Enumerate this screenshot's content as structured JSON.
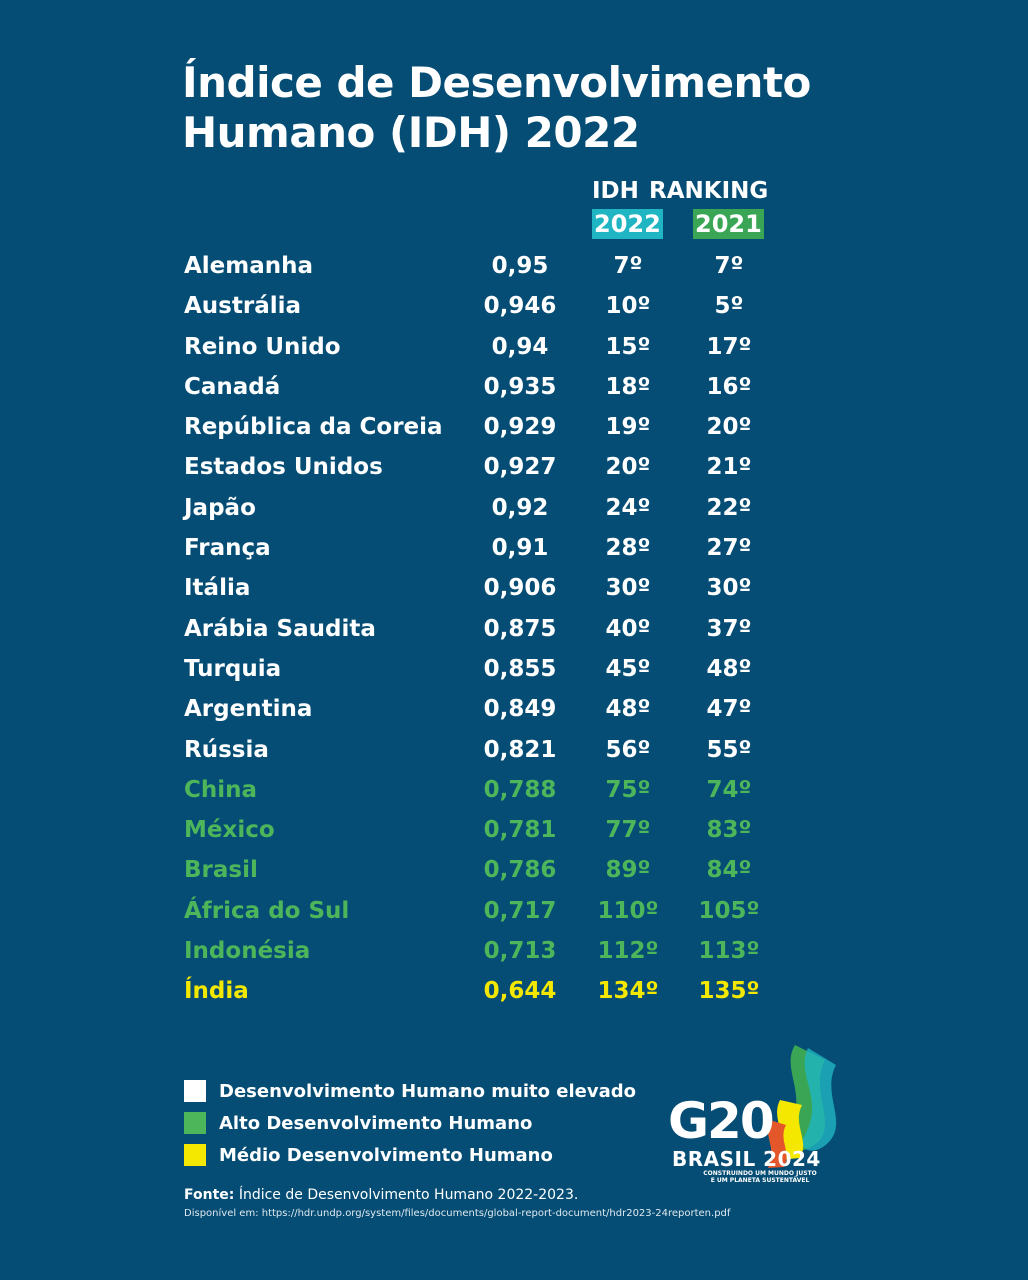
{
  "title": "Índice de Desenvolvimento Humano (IDH) 2022",
  "header": {
    "idh_label": "IDH",
    "ranking_label": "RANKING",
    "year_2022": "2022",
    "year_2021": "2021"
  },
  "chart_data": {
    "type": "table",
    "title": "Índice de Desenvolvimento Humano (IDH) 2022",
    "columns": [
      "",
      "IDH",
      "RANKING 2022",
      "RANKING 2021"
    ],
    "rows": [
      {
        "country": "Alemanha",
        "idh": "0,95",
        "rank_2022": "7º",
        "rank_2021": "7º",
        "level": "very-high"
      },
      {
        "country": "Austrália",
        "idh": "0,946",
        "rank_2022": "10º",
        "rank_2021": "5º",
        "level": "very-high"
      },
      {
        "country": "Reino Unido",
        "idh": "0,94",
        "rank_2022": "15º",
        "rank_2021": "17º",
        "level": "very-high"
      },
      {
        "country": "Canadá",
        "idh": "0,935",
        "rank_2022": "18º",
        "rank_2021": "16º",
        "level": "very-high"
      },
      {
        "country": "República da Coreia",
        "idh": "0,929",
        "rank_2022": "19º",
        "rank_2021": "20º",
        "level": "very-high"
      },
      {
        "country": "Estados Unidos",
        "idh": "0,927",
        "rank_2022": "20º",
        "rank_2021": "21º",
        "level": "very-high"
      },
      {
        "country": "Japão",
        "idh": "0,92",
        "rank_2022": "24º",
        "rank_2021": "22º",
        "level": "very-high"
      },
      {
        "country": "França",
        "idh": "0,91",
        "rank_2022": "28º",
        "rank_2021": "27º",
        "level": "very-high"
      },
      {
        "country": "Itália",
        "idh": "0,906",
        "rank_2022": "30º",
        "rank_2021": "30º",
        "level": "very-high"
      },
      {
        "country": "Arábia Saudita",
        "idh": "0,875",
        "rank_2022": "40º",
        "rank_2021": "37º",
        "level": "very-high"
      },
      {
        "country": "Turquia",
        "idh": "0,855",
        "rank_2022": "45º",
        "rank_2021": "48º",
        "level": "very-high"
      },
      {
        "country": "Argentina",
        "idh": "0,849",
        "rank_2022": "48º",
        "rank_2021": "47º",
        "level": "very-high"
      },
      {
        "country": "Rússia",
        "idh": "0,821",
        "rank_2022": "56º",
        "rank_2021": "55º",
        "level": "very-high"
      },
      {
        "country": "China",
        "idh": "0,788",
        "rank_2022": "75º",
        "rank_2021": "74º",
        "level": "high"
      },
      {
        "country": "México",
        "idh": "0,781",
        "rank_2022": "77º",
        "rank_2021": "83º",
        "level": "high"
      },
      {
        "country": "Brasil",
        "idh": "0,786",
        "rank_2022": "89º",
        "rank_2021": "84º",
        "level": "high"
      },
      {
        "country": "África do Sul",
        "idh": "0,717",
        "rank_2022": "110º",
        "rank_2021": "105º",
        "level": "high"
      },
      {
        "country": "Indonésia",
        "idh": "0,713",
        "rank_2022": "112º",
        "rank_2021": "113º",
        "level": "high"
      },
      {
        "country": "Índia",
        "idh": "0,644",
        "rank_2022": "134º",
        "rank_2021": "135º",
        "level": "medium"
      }
    ]
  },
  "legend": [
    {
      "label": "Desenvolvimento Humano muito elevado",
      "color": "#ffffff"
    },
    {
      "label": "Alto Desenvolvimento Humano",
      "color": "#4db55a"
    },
    {
      "label": "Médio Desenvolvimento Humano",
      "color": "#f5e800"
    }
  ],
  "source": {
    "label": "Fonte:",
    "text": "Índice de Desenvolvimento Humano 2022-2023.",
    "url_line": "Disponível em: https://hdr.undp.org/system/files/documents/global-report-document/hdr2023-24reporten.pdf"
  },
  "logo": {
    "main": "G20",
    "sub": "BRASIL 2024",
    "tagline_1": "CONSTRUINDO UM MUNDO JUSTO",
    "tagline_2": "E UM PLANETA SUSTENTÁVEL"
  },
  "colors": {
    "background": "#054d74",
    "year_2022_bg": "#1fb5c2",
    "year_2021_bg": "#3aa655"
  }
}
